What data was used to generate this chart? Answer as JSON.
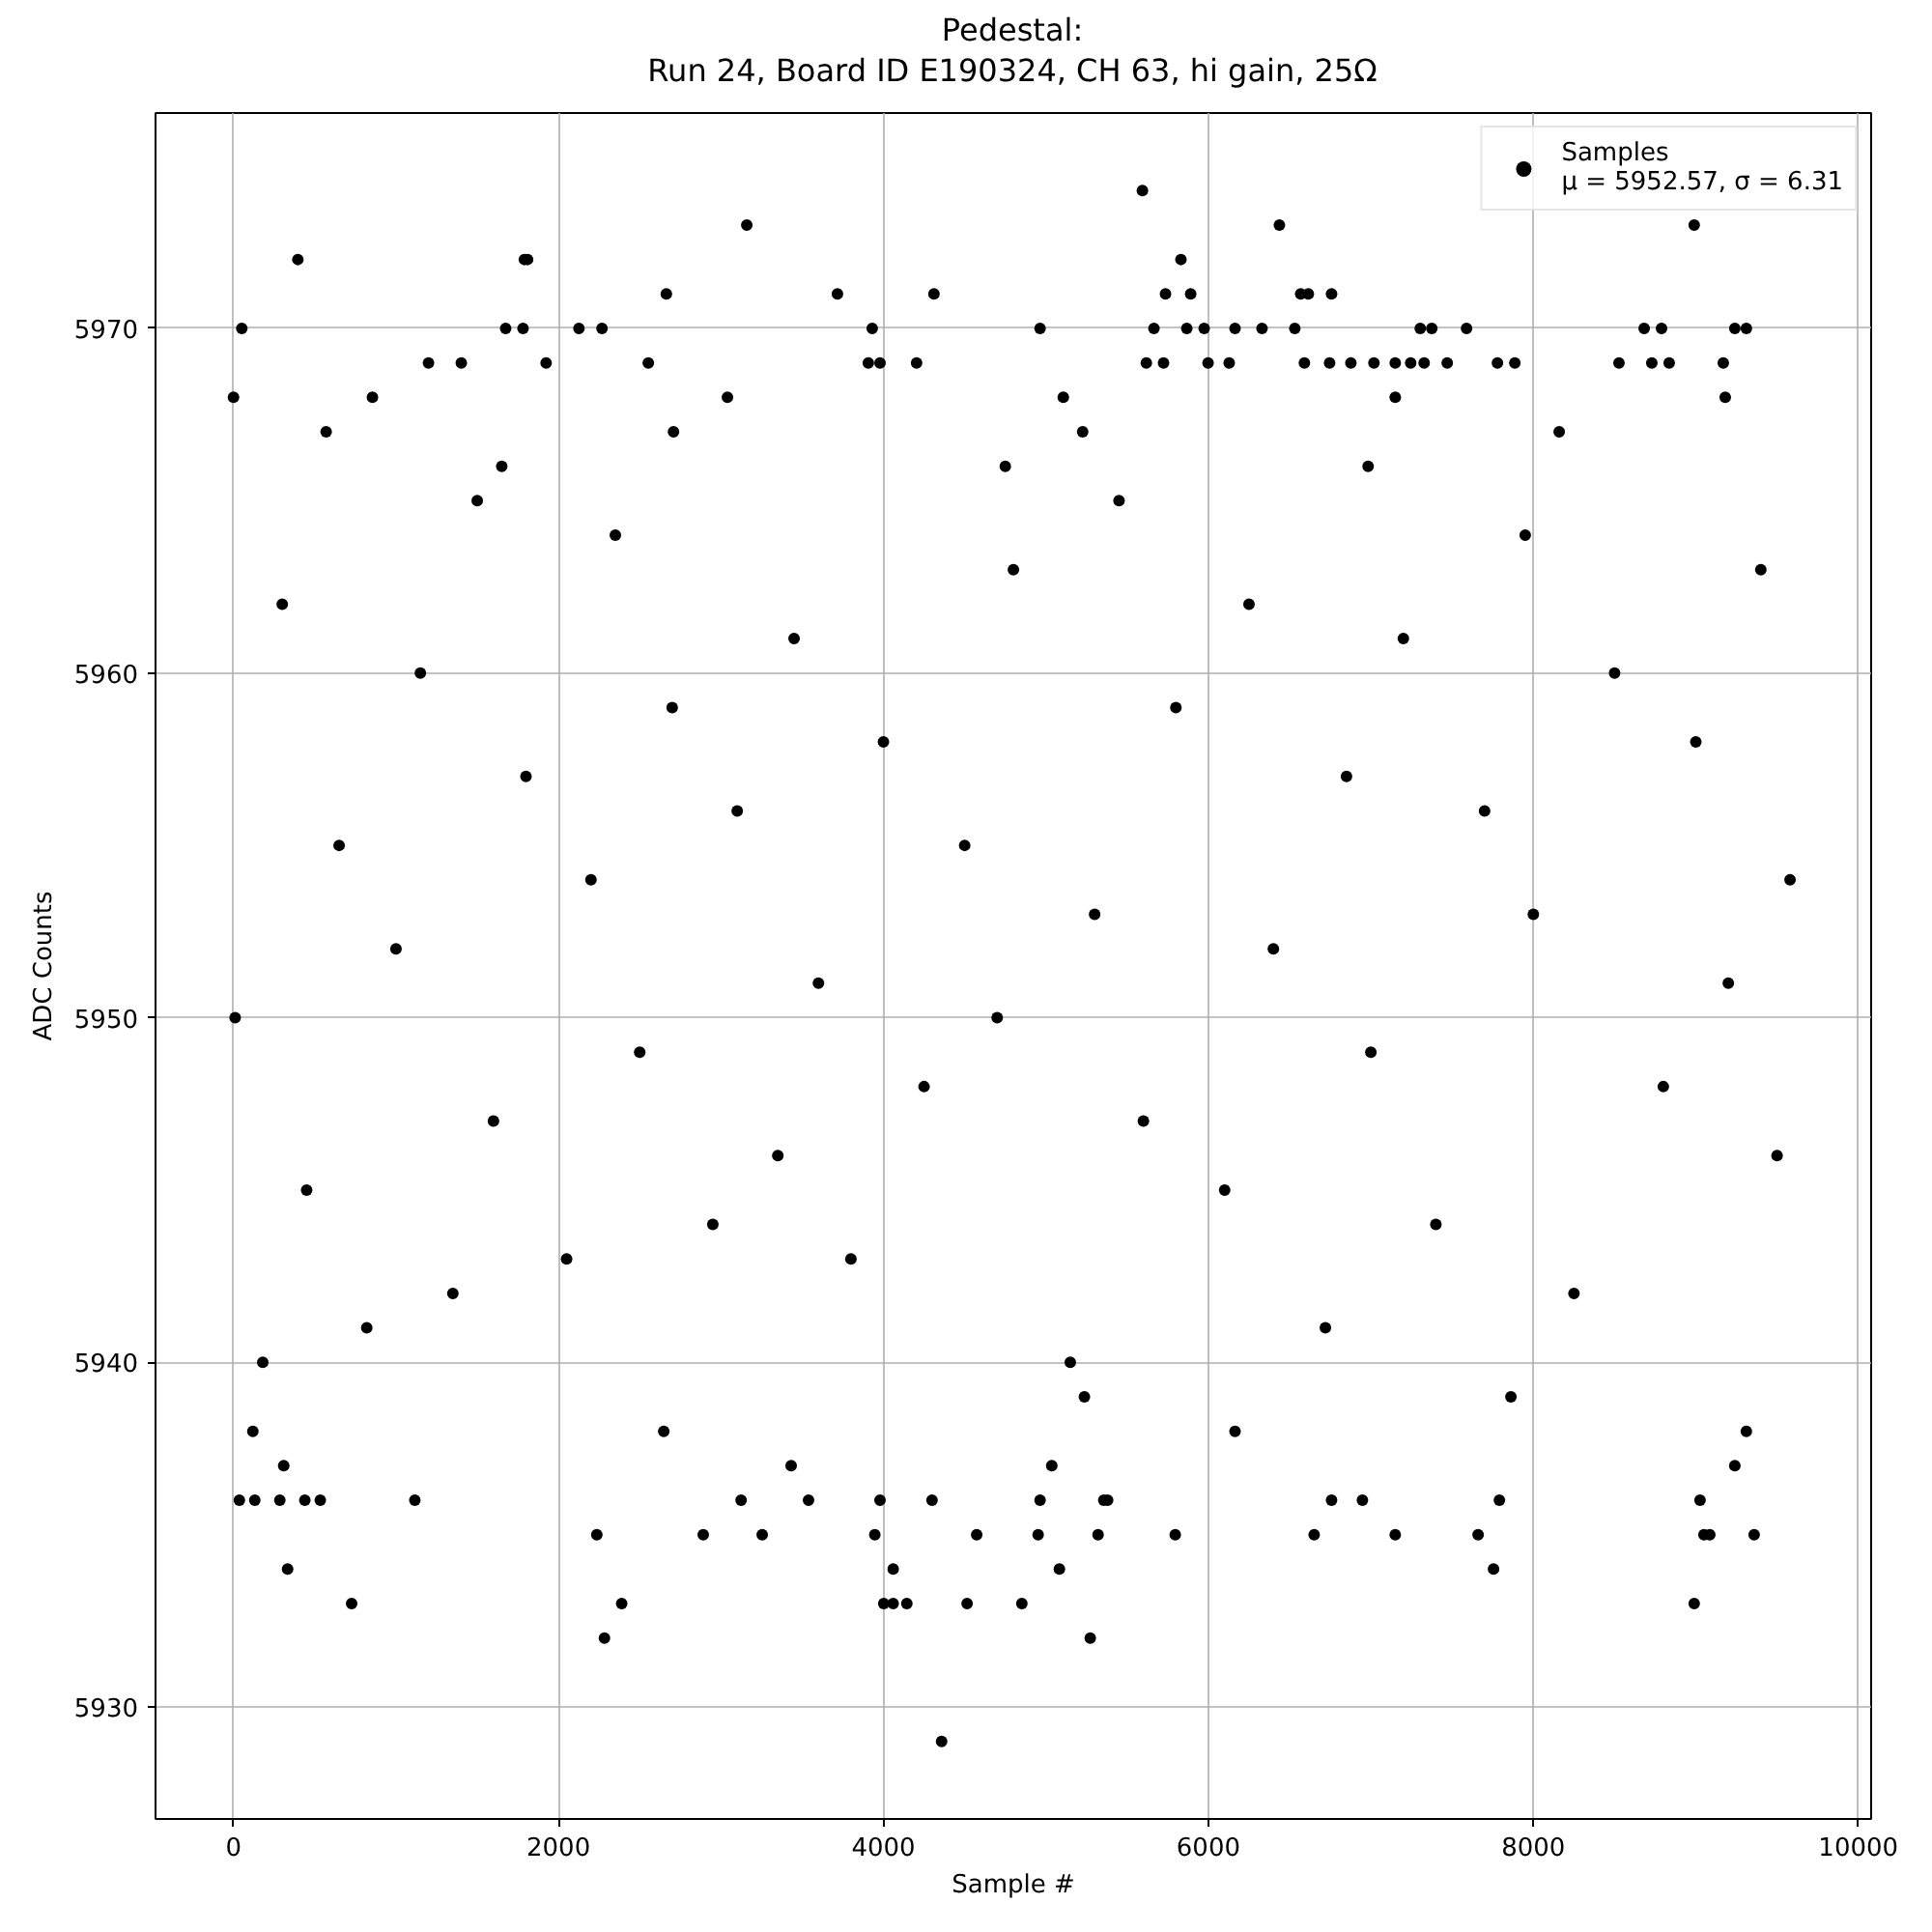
{
  "chart_data": {
    "type": "scatter",
    "title": "Pedestal:\nRun 24, Board ID E190324, CH 63, hi gain, 25Ω",
    "xlabel": "Sample #",
    "ylabel": "ADC Counts",
    "xlim": [
      -480,
      10079
    ],
    "ylim": [
      5926.75,
      5976.25
    ],
    "xticks": [
      0,
      2000,
      4000,
      6000,
      8000,
      10000
    ],
    "yticks": [
      5930,
      5940,
      5950,
      5960,
      5970
    ],
    "grid": true,
    "legend": "top right",
    "marker": "circle",
    "series": [
      {
        "name": "Samples\nμ = 5952.57, σ = 6.31",
        "color": "#000000",
        "x": [
          5594,
          3159,
          6437,
          8990,
          396,
          1790,
          1810,
          5831,
          2664,
          3717,
          4311,
          5736,
          5891,
          6568,
          6615,
          6758,
          51,
          1675,
          1782,
          2126,
          2268,
          3931,
          4964,
          5665,
          5867,
          5974,
          6164,
          6330,
          6532,
          7304,
          7375,
          7589,
          8682,
          8789,
          9240,
          9311,
          1200,
          1402,
          1924,
          2553,
          3907,
          3979,
          4204,
          5618,
          5724,
          5998,
          6128,
          6591,
          6746,
          6877,
          7019,
          7150,
          7245,
          7328,
          7470,
          7779,
          7886,
          8527,
          8729,
          8836,
          9169,
          0,
          855,
          3040,
          5107,
          7150,
          9181,
          570,
          2708,
          5226,
          8159,
          1651,
          4750,
          6983,
          4358,
          2283,
          5273,
          727,
          2389,
          4002,
          4060,
          4144,
          4515,
          4852,
          8990,
          333,
          4060,
          5083,
          7755,
          2236,
          2891,
          3254,
          3947,
          4574,
          4952,
          5321,
          5796,
          6651,
          7150,
          7660,
          9050,
          9086,
          9359,
          36,
          131,
          285,
          439,
          534,
          1116,
          3124,
          3539,
          3979,
          4299,
          4964,
          5356,
          5380,
          6758,
          6948,
          7791,
          9026,
          309,
          3432,
          5036,
          9240,
          119,
          2648,
          6164,
          9311,
          5237,
          7862,
          180,
          5150,
          820,
          6720,
          1350,
          8250,
          2050,
          3800,
          2950,
          7400,
          450,
          6100,
          3350,
          9500,
          1600,
          5600,
          4250,
          8800,
          2500,
          7000,
          10,
          4700,
          3600,
          9200,
          1000,
          6400,
          5300,
          8000,
          2200,
          9580,
          650,
          4500,
          3100,
          7700,
          1800,
          6850,
          4000,
          9000,
          2700,
          5800,
          1150,
          8500,
          3450,
          7200,
          300,
          6250,
          4800,
          9400,
          2350,
          7950,
          1500,
          5450
        ],
        "values": [
          5974,
          5973,
          5973,
          5973,
          5972,
          5972,
          5972,
          5972,
          5971,
          5971,
          5971,
          5971,
          5971,
          5971,
          5971,
          5971,
          5970,
          5970,
          5970,
          5970,
          5970,
          5970,
          5970,
          5970,
          5970,
          5970,
          5970,
          5970,
          5970,
          5970,
          5970,
          5970,
          5970,
          5970,
          5970,
          5970,
          5969,
          5969,
          5969,
          5969,
          5969,
          5969,
          5969,
          5969,
          5969,
          5969,
          5969,
          5969,
          5969,
          5969,
          5969,
          5969,
          5969,
          5969,
          5969,
          5969,
          5969,
          5969,
          5969,
          5969,
          5969,
          5968,
          5968,
          5968,
          5968,
          5968,
          5968,
          5967,
          5967,
          5967,
          5967,
          5966,
          5966,
          5966,
          5929,
          5932,
          5932,
          5933,
          5933,
          5933,
          5933,
          5933,
          5933,
          5933,
          5933,
          5934,
          5934,
          5934,
          5934,
          5935,
          5935,
          5935,
          5935,
          5935,
          5935,
          5935,
          5935,
          5935,
          5935,
          5935,
          5935,
          5935,
          5935,
          5936,
          5936,
          5936,
          5936,
          5936,
          5936,
          5936,
          5936,
          5936,
          5936,
          5936,
          5936,
          5936,
          5936,
          5936,
          5936,
          5936,
          5937,
          5937,
          5937,
          5937,
          5938,
          5938,
          5938,
          5938,
          5939,
          5939,
          5940,
          5940,
          5941,
          5941,
          5942,
          5942,
          5943,
          5943,
          5944,
          5944,
          5945,
          5945,
          5946,
          5946,
          5947,
          5947,
          5948,
          5948,
          5949,
          5949,
          5950,
          5950,
          5951,
          5951,
          5952,
          5952,
          5953,
          5953,
          5954,
          5954,
          5955,
          5955,
          5956,
          5956,
          5957,
          5957,
          5958,
          5958,
          5959,
          5959,
          5960,
          5960,
          5961,
          5961,
          5962,
          5962,
          5963,
          5963,
          5964,
          5964,
          5965,
          5965
        ]
      }
    ]
  }
}
